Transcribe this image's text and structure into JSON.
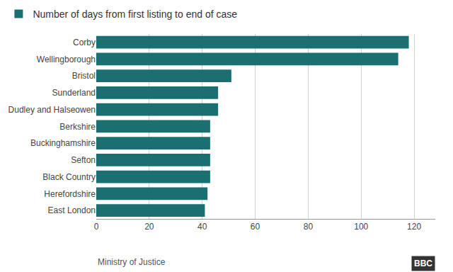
{
  "chart_data": {
    "type": "bar",
    "orientation": "horizontal",
    "categories": [
      "East London",
      "Herefordshire",
      "Black Country",
      "Sefton",
      "Buckinghamshire",
      "Berkshire",
      "Dudley and Halseowen",
      "Sunderland",
      "Bristol",
      "Wellingborough",
      "Corby"
    ],
    "series": [
      {
        "name": "Number of days from first listing to end of case",
        "color": "#1a7070",
        "values": [
          41,
          42,
          43,
          43,
          43,
          43,
          46,
          46,
          51,
          114,
          118
        ]
      }
    ],
    "xlim": [
      0,
      128
    ],
    "xticks": [
      0,
      20,
      40,
      60,
      80,
      100,
      120
    ],
    "grid": true,
    "legend": "upper left",
    "annotations": [
      "Ministry of Justice",
      "BBC"
    ]
  }
}
